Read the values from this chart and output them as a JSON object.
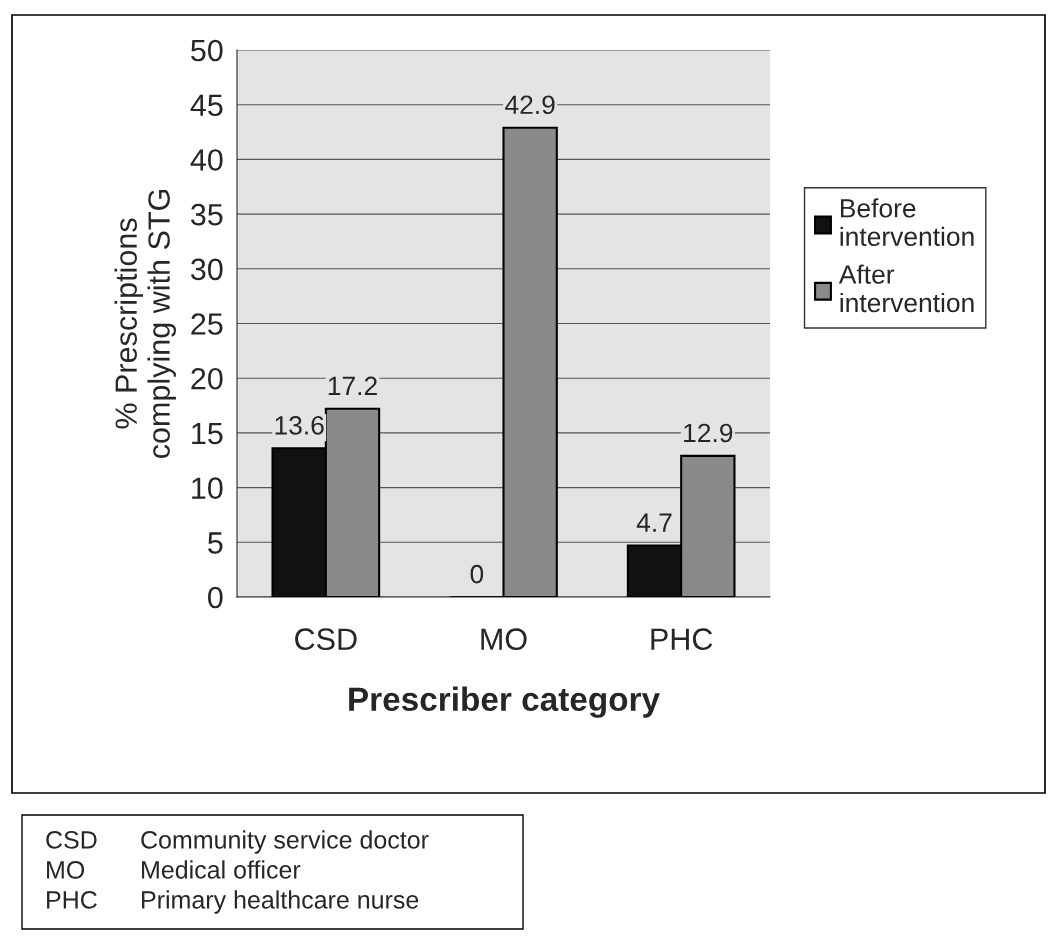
{
  "chart_data": {
    "type": "bar",
    "xlabel": "Prescriber category",
    "ylabel": "% Prescriptions\ncomplying with STG",
    "categories": [
      "CSD",
      "MO",
      "PHC"
    ],
    "series": [
      {
        "name": "Before\nintervention",
        "color": "#111111",
        "values": [
          13.6,
          0,
          4.7
        ]
      },
      {
        "name": "After\nintervention",
        "color": "#8a8a8a",
        "values": [
          17.2,
          42.9,
          12.9
        ]
      }
    ],
    "ylim": [
      0,
      50
    ],
    "yticks": [
      0,
      5,
      10,
      15,
      20,
      25,
      30,
      35,
      40,
      45,
      50
    ],
    "grid": "y",
    "legend": "right",
    "data_labels": true,
    "annotations": [
      "CSD Community service doctor",
      "MO Medical officer",
      "PHC Primary healthcare nurse"
    ]
  }
}
